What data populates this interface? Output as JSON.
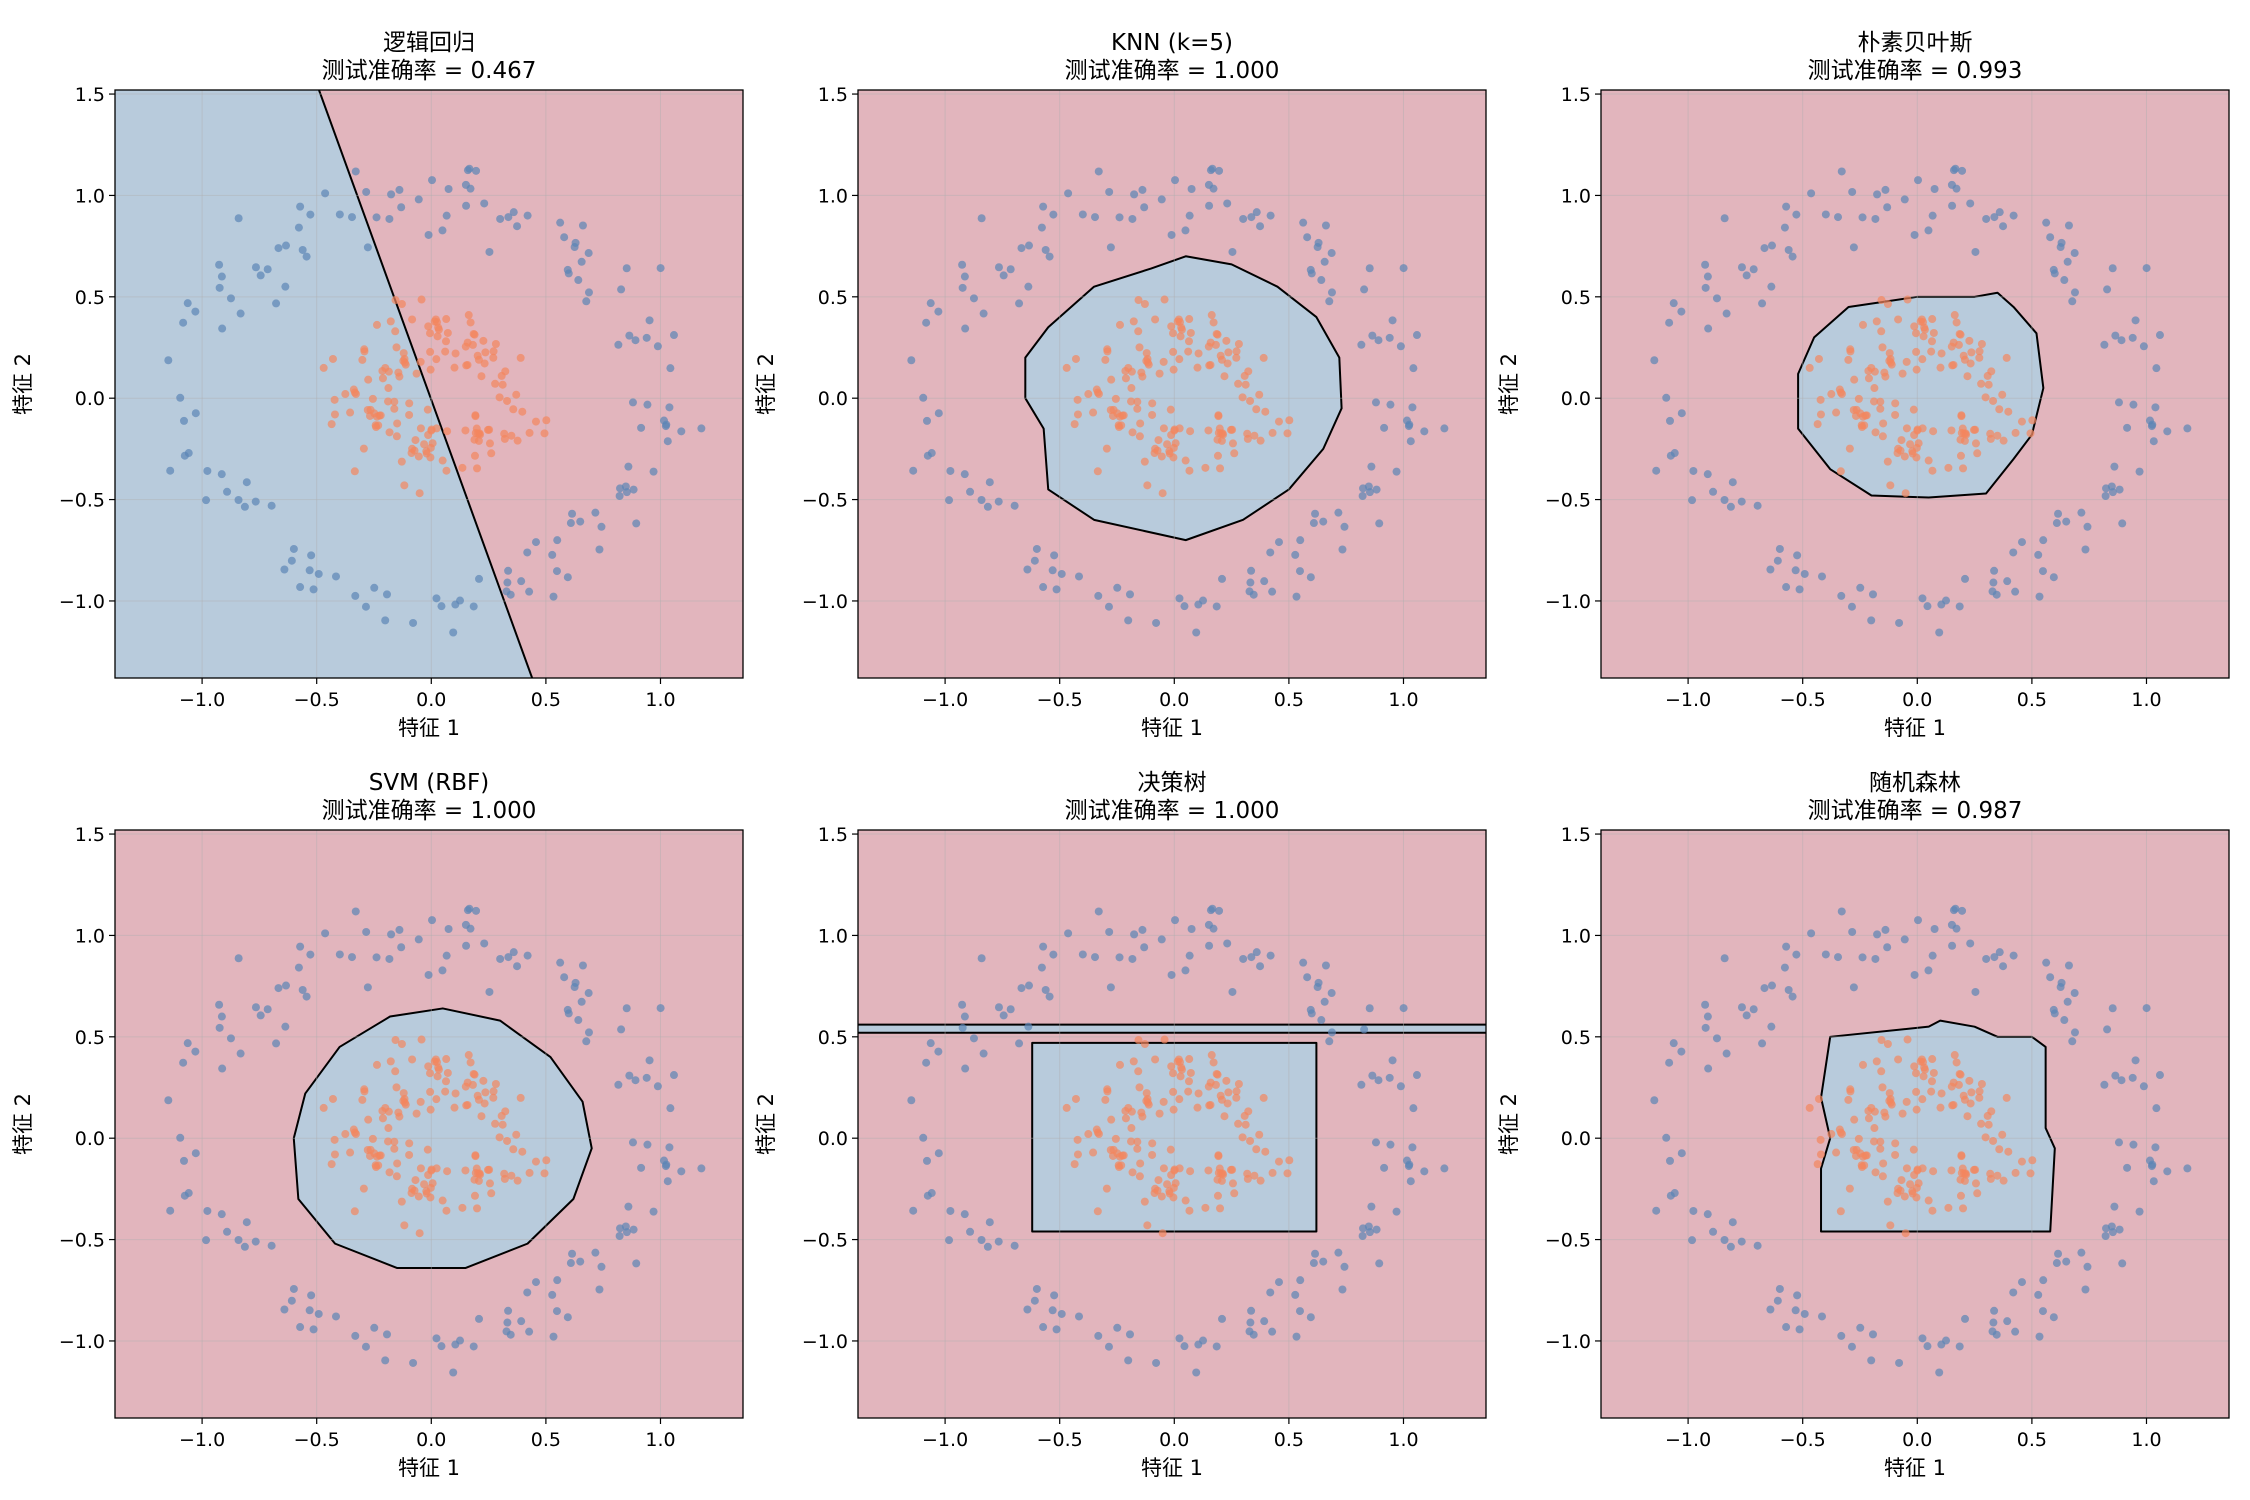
{
  "figure": {
    "colors": {
      "outer_region": "#e2b5bd",
      "inner_region": "#b8cbdc",
      "outer_points": "#5b85b5",
      "inner_points": "#f3865e",
      "boundary": "#000000"
    }
  },
  "chart_data": [
    {
      "type": "scatter",
      "title_line1": "逻辑回归",
      "title_line2": "测试准确率 = 0.467",
      "xlabel": "特征 1",
      "ylabel": "特征 2",
      "xlim": [
        -1.38,
        1.36
      ],
      "ylim": [
        -1.38,
        1.52
      ],
      "xticks": [
        -1.0,
        -0.5,
        0.0,
        0.5,
        1.0
      ],
      "xtick_labels": [
        "−1.0",
        "−0.5",
        "0.0",
        "0.5",
        "1.0"
      ],
      "yticks": [
        -1.0,
        -0.5,
        0.0,
        0.5,
        1.0,
        1.5
      ],
      "ytick_labels": [
        "−1.0",
        "−0.5",
        "0.0",
        "0.5",
        "1.0",
        "1.5"
      ],
      "grid": true,
      "decision_boundary": {
        "kind": "line",
        "points": [
          [
            -0.49,
            1.52
          ],
          [
            0.44,
            -1.38
          ]
        ]
      }
    },
    {
      "type": "scatter",
      "title_line1": "KNN (k=5)",
      "title_line2": "测试准确率 = 1.000",
      "xlabel": "特征 1",
      "ylabel": "特征 2",
      "xlim": [
        -1.38,
        1.36
      ],
      "ylim": [
        -1.38,
        1.52
      ],
      "xticks": [
        -1.0,
        -0.5,
        0.0,
        0.5,
        1.0
      ],
      "xtick_labels": [
        "−1.0",
        "−0.5",
        "0.0",
        "0.5",
        "1.0"
      ],
      "yticks": [
        -1.0,
        -0.5,
        0.0,
        0.5,
        1.0,
        1.5
      ],
      "ytick_labels": [
        "−1.0",
        "−0.5",
        "0.0",
        "0.5",
        "1.0",
        "1.5"
      ],
      "grid": true,
      "decision_boundary": {
        "kind": "polygon",
        "points": [
          [
            -0.1,
            0.64
          ],
          [
            0.05,
            0.7
          ],
          [
            0.25,
            0.66
          ],
          [
            0.45,
            0.55
          ],
          [
            0.62,
            0.4
          ],
          [
            0.72,
            0.2
          ],
          [
            0.73,
            -0.05
          ],
          [
            0.65,
            -0.25
          ],
          [
            0.5,
            -0.45
          ],
          [
            0.3,
            -0.6
          ],
          [
            0.05,
            -0.7
          ],
          [
            -0.35,
            -0.6
          ],
          [
            -0.55,
            -0.45
          ],
          [
            -0.57,
            -0.15
          ],
          [
            -0.65,
            0.0
          ],
          [
            -0.65,
            0.2
          ],
          [
            -0.55,
            0.35
          ],
          [
            -0.35,
            0.55
          ]
        ]
      }
    },
    {
      "type": "scatter",
      "title_line1": "朴素贝叶斯",
      "title_line2": "测试准确率 = 0.993",
      "xlabel": "特征 1",
      "ylabel": "特征 2",
      "xlim": [
        -1.38,
        1.36
      ],
      "ylim": [
        -1.38,
        1.52
      ],
      "xticks": [
        -1.0,
        -0.5,
        0.0,
        0.5,
        1.0
      ],
      "xtick_labels": [
        "−1.0",
        "−0.5",
        "0.0",
        "0.5",
        "1.0"
      ],
      "yticks": [
        -1.0,
        -0.5,
        0.0,
        0.5,
        1.0,
        1.5
      ],
      "ytick_labels": [
        "−1.0",
        "−0.5",
        "0.0",
        "0.5",
        "1.0",
        "1.5"
      ],
      "grid": true,
      "decision_boundary": {
        "kind": "polygon",
        "points": [
          [
            -0.3,
            0.45
          ],
          [
            0.0,
            0.5
          ],
          [
            0.25,
            0.5
          ],
          [
            0.35,
            0.52
          ],
          [
            0.42,
            0.45
          ],
          [
            0.52,
            0.32
          ],
          [
            0.55,
            0.05
          ],
          [
            0.5,
            -0.18
          ],
          [
            0.42,
            -0.3
          ],
          [
            0.3,
            -0.47
          ],
          [
            0.05,
            -0.49
          ],
          [
            -0.2,
            -0.48
          ],
          [
            -0.38,
            -0.35
          ],
          [
            -0.52,
            -0.15
          ],
          [
            -0.52,
            0.12
          ],
          [
            -0.45,
            0.3
          ]
        ]
      }
    },
    {
      "type": "scatter",
      "title_line1": "SVM (RBF)",
      "title_line2": "测试准确率 = 1.000",
      "xlabel": "特征 1",
      "ylabel": "特征 2",
      "xlim": [
        -1.38,
        1.36
      ],
      "ylim": [
        -1.38,
        1.52
      ],
      "xticks": [
        -1.0,
        -0.5,
        0.0,
        0.5,
        1.0
      ],
      "xtick_labels": [
        "−1.0",
        "−0.5",
        "0.0",
        "0.5",
        "1.0"
      ],
      "yticks": [
        -1.0,
        -0.5,
        0.0,
        0.5,
        1.0,
        1.5
      ],
      "ytick_labels": [
        "−1.0",
        "−0.5",
        "0.0",
        "0.5",
        "1.0",
        "1.5"
      ],
      "grid": true,
      "decision_boundary": {
        "kind": "polygon",
        "points": [
          [
            0.05,
            0.64
          ],
          [
            0.3,
            0.58
          ],
          [
            0.52,
            0.4
          ],
          [
            0.66,
            0.18
          ],
          [
            0.7,
            -0.05
          ],
          [
            0.62,
            -0.3
          ],
          [
            0.42,
            -0.52
          ],
          [
            0.15,
            -0.64
          ],
          [
            -0.15,
            -0.64
          ],
          [
            -0.42,
            -0.52
          ],
          [
            -0.58,
            -0.3
          ],
          [
            -0.6,
            0.0
          ],
          [
            -0.55,
            0.22
          ],
          [
            -0.4,
            0.45
          ],
          [
            -0.18,
            0.6
          ]
        ]
      }
    },
    {
      "type": "scatter",
      "title_line1": "决策树",
      "title_line2": "测试准确率 = 1.000",
      "xlabel": "特征 1",
      "ylabel": "特征 2",
      "xlim": [
        -1.38,
        1.36
      ],
      "ylim": [
        -1.38,
        1.52
      ],
      "xticks": [
        -1.0,
        -0.5,
        0.0,
        0.5,
        1.0
      ],
      "xtick_labels": [
        "−1.0",
        "−0.5",
        "0.0",
        "0.5",
        "1.0"
      ],
      "yticks": [
        -1.0,
        -0.5,
        0.0,
        0.5,
        1.0,
        1.5
      ],
      "ytick_labels": [
        "−1.0",
        "−0.5",
        "0.0",
        "0.5",
        "1.0",
        "1.5"
      ],
      "grid": true,
      "decision_boundary": {
        "kind": "rect",
        "points": [
          [
            -0.62,
            0.47
          ],
          [
            0.62,
            0.47
          ],
          [
            0.62,
            -0.46
          ],
          [
            -0.62,
            -0.46
          ]
        ],
        "stripe_y": [
          0.52,
          0.56
        ]
      }
    },
    {
      "type": "scatter",
      "title_line1": "随机森林",
      "title_line2": "测试准确率 = 0.987",
      "xlabel": "特征 1",
      "ylabel": "特征 2",
      "xlim": [
        -1.38,
        1.36
      ],
      "ylim": [
        -1.38,
        1.52
      ],
      "xticks": [
        -1.0,
        -0.5,
        0.0,
        0.5,
        1.0
      ],
      "xtick_labels": [
        "−1.0",
        "−0.5",
        "0.0",
        "0.5",
        "1.0"
      ],
      "yticks": [
        -1.0,
        -0.5,
        0.0,
        0.5,
        1.0,
        1.5
      ],
      "ytick_labels": [
        "−1.0",
        "−0.5",
        "0.0",
        "0.5",
        "1.0",
        "1.5"
      ],
      "grid": true,
      "decision_boundary": {
        "kind": "polygon",
        "points": [
          [
            -0.38,
            0.5
          ],
          [
            0.05,
            0.55
          ],
          [
            0.1,
            0.58
          ],
          [
            0.25,
            0.55
          ],
          [
            0.35,
            0.5
          ],
          [
            0.5,
            0.5
          ],
          [
            0.56,
            0.45
          ],
          [
            0.56,
            0.05
          ],
          [
            0.6,
            -0.05
          ],
          [
            0.58,
            -0.46
          ],
          [
            -0.42,
            -0.46
          ],
          [
            -0.42,
            -0.15
          ],
          [
            -0.38,
            0.0
          ],
          [
            -0.42,
            0.2
          ]
        ]
      }
    }
  ]
}
